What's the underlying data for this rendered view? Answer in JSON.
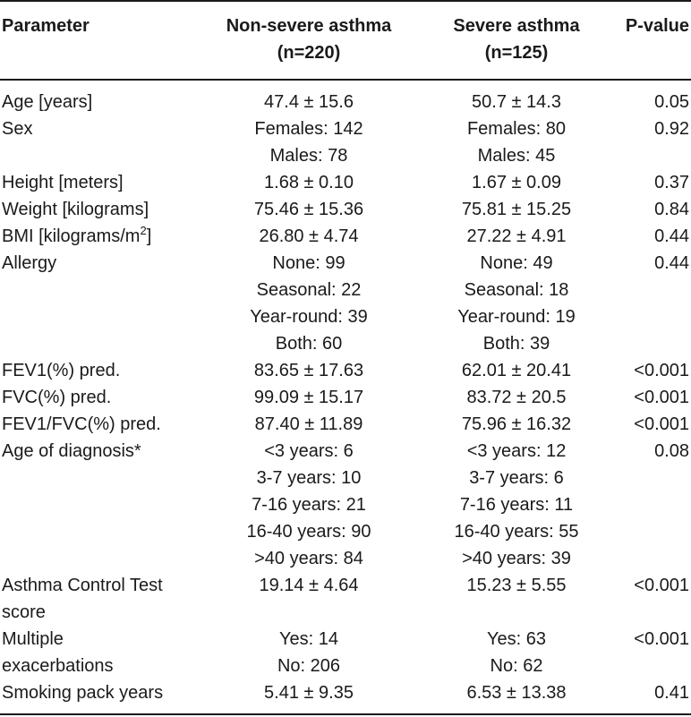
{
  "headers": {
    "parameter": "Parameter",
    "nonsevere": [
      "Non-severe asthma",
      "(n=220)"
    ],
    "severe": [
      "Severe asthma",
      "(n=125)"
    ],
    "pvalue": "P-value"
  },
  "rows": [
    {
      "param": [
        "Age [years]"
      ],
      "nonsevere": [
        "47.4 ± 15.6"
      ],
      "severe": [
        "50.7 ± 14.3"
      ],
      "p": "0.05"
    },
    {
      "param": [
        "Sex"
      ],
      "nonsevere": [
        "Females: 142",
        "Males: 78"
      ],
      "severe": [
        "Females: 80",
        "Males: 45"
      ],
      "p": "0.92"
    },
    {
      "param": [
        "Height [meters]"
      ],
      "nonsevere": [
        "1.68 ± 0.10"
      ],
      "severe": [
        "1.67 ± 0.09"
      ],
      "p": "0.37"
    },
    {
      "param": [
        "Weight [kilograms]"
      ],
      "nonsevere": [
        "75.46 ± 15.36"
      ],
      "severe": [
        "75.81 ± 15.25"
      ],
      "p": "0.84"
    },
    {
      "param": [
        "BMI [kilograms/m"
      ],
      "param_sup": "2",
      "param_suffix": "]",
      "nonsevere": [
        "26.80 ± 4.74"
      ],
      "severe": [
        "27.22 ± 4.91"
      ],
      "p": "0.44"
    },
    {
      "param": [
        "Allergy"
      ],
      "nonsevere": [
        "None: 99",
        "Seasonal: 22",
        "Year-round: 39",
        "Both: 60"
      ],
      "severe": [
        "None: 49",
        "Seasonal: 18",
        "Year-round: 19",
        "Both: 39"
      ],
      "p": "0.44"
    },
    {
      "param": [
        "FEV1(%) pred."
      ],
      "nonsevere": [
        "83.65 ± 17.63"
      ],
      "severe": [
        "62.01 ± 20.41"
      ],
      "p": "<0.001"
    },
    {
      "param": [
        "FVC(%) pred."
      ],
      "nonsevere": [
        "99.09 ± 15.17"
      ],
      "severe": [
        "83.72 ± 20.5"
      ],
      "p": "<0.001"
    },
    {
      "param": [
        "FEV1/FVC(%) pred."
      ],
      "nonsevere": [
        "87.40 ± 11.89"
      ],
      "severe": [
        "75.96 ± 16.32"
      ],
      "p": "<0.001"
    },
    {
      "param": [
        "Age of diagnosis*"
      ],
      "nonsevere": [
        "<3 years: 6",
        "3-7 years: 10",
        "7-16 years: 21",
        "16-40 years: 90",
        ">40 years: 84"
      ],
      "severe": [
        "<3 years: 12",
        "3-7 years: 6",
        "7-16 years: 11",
        "16-40 years: 55",
        ">40 years: 39"
      ],
      "p": "0.08"
    },
    {
      "param": [
        "Asthma Control Test",
        "score"
      ],
      "nonsevere": [
        "19.14 ± 4.64"
      ],
      "severe": [
        "15.23 ± 5.55"
      ],
      "p": "<0.001"
    },
    {
      "param": [
        "Multiple",
        "exacerbations"
      ],
      "nonsevere": [
        "Yes: 14",
        "No: 206"
      ],
      "severe": [
        "Yes: 63",
        "No: 62"
      ],
      "p": "<0.001"
    },
    {
      "param": [
        "Smoking pack years"
      ],
      "nonsevere": [
        "5.41 ± 9.35"
      ],
      "severe": [
        "6.53 ± 13.38"
      ],
      "p": "0.41"
    }
  ]
}
